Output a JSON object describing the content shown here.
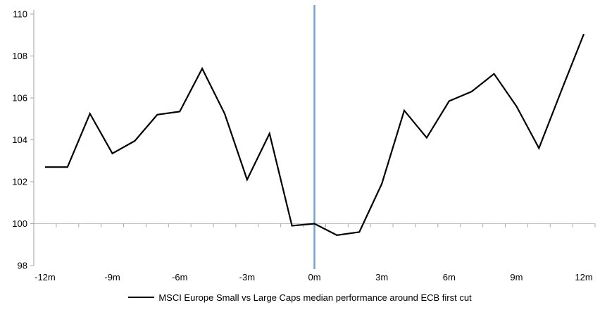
{
  "chart_data": {
    "type": "line",
    "title": "",
    "xlabel": "",
    "ylabel": "",
    "categories": [
      "-12m",
      "-11m",
      "-10m",
      "-9m",
      "-8m",
      "-7m",
      "-6m",
      "-5m",
      "-4m",
      "-3m",
      "-2m",
      "-1m",
      "0m",
      "1m",
      "2m",
      "3m",
      "4m",
      "5m",
      "6m",
      "7m",
      "8m",
      "9m",
      "10m",
      "11m",
      "12m"
    ],
    "series": [
      {
        "name": "MSCI Europe Small vs Large Caps median performance around ECB first cut",
        "color": "#000000",
        "values": [
          102.7,
          102.7,
          105.25,
          103.35,
          103.95,
          105.2,
          105.35,
          107.4,
          105.25,
          102.1,
          104.3,
          99.9,
          100.0,
          99.45,
          99.6,
          101.9,
          105.4,
          104.1,
          105.85,
          106.3,
          107.15,
          105.6,
          103.6,
          106.35,
          109.05
        ]
      }
    ],
    "ylim": [
      98,
      110
    ],
    "y_ticks": [
      98,
      100,
      102,
      104,
      106,
      108,
      110
    ],
    "x_tick_labels": [
      "-12m",
      "-9m",
      "-6m",
      "-3m",
      "0m",
      "3m",
      "6m",
      "9m",
      "12m"
    ],
    "baseline_value": 100,
    "grid": "horizontal line at 100 only",
    "legend_position": "bottom-center",
    "event_line": {
      "at_category": "0m",
      "color": "#74A3CE"
    },
    "axis_color": "#A6A6A6",
    "gridline_color": "#BFBFBF"
  },
  "legend": {
    "label": "MSCI Europe Small vs Large Caps median performance around ECB first cut"
  }
}
